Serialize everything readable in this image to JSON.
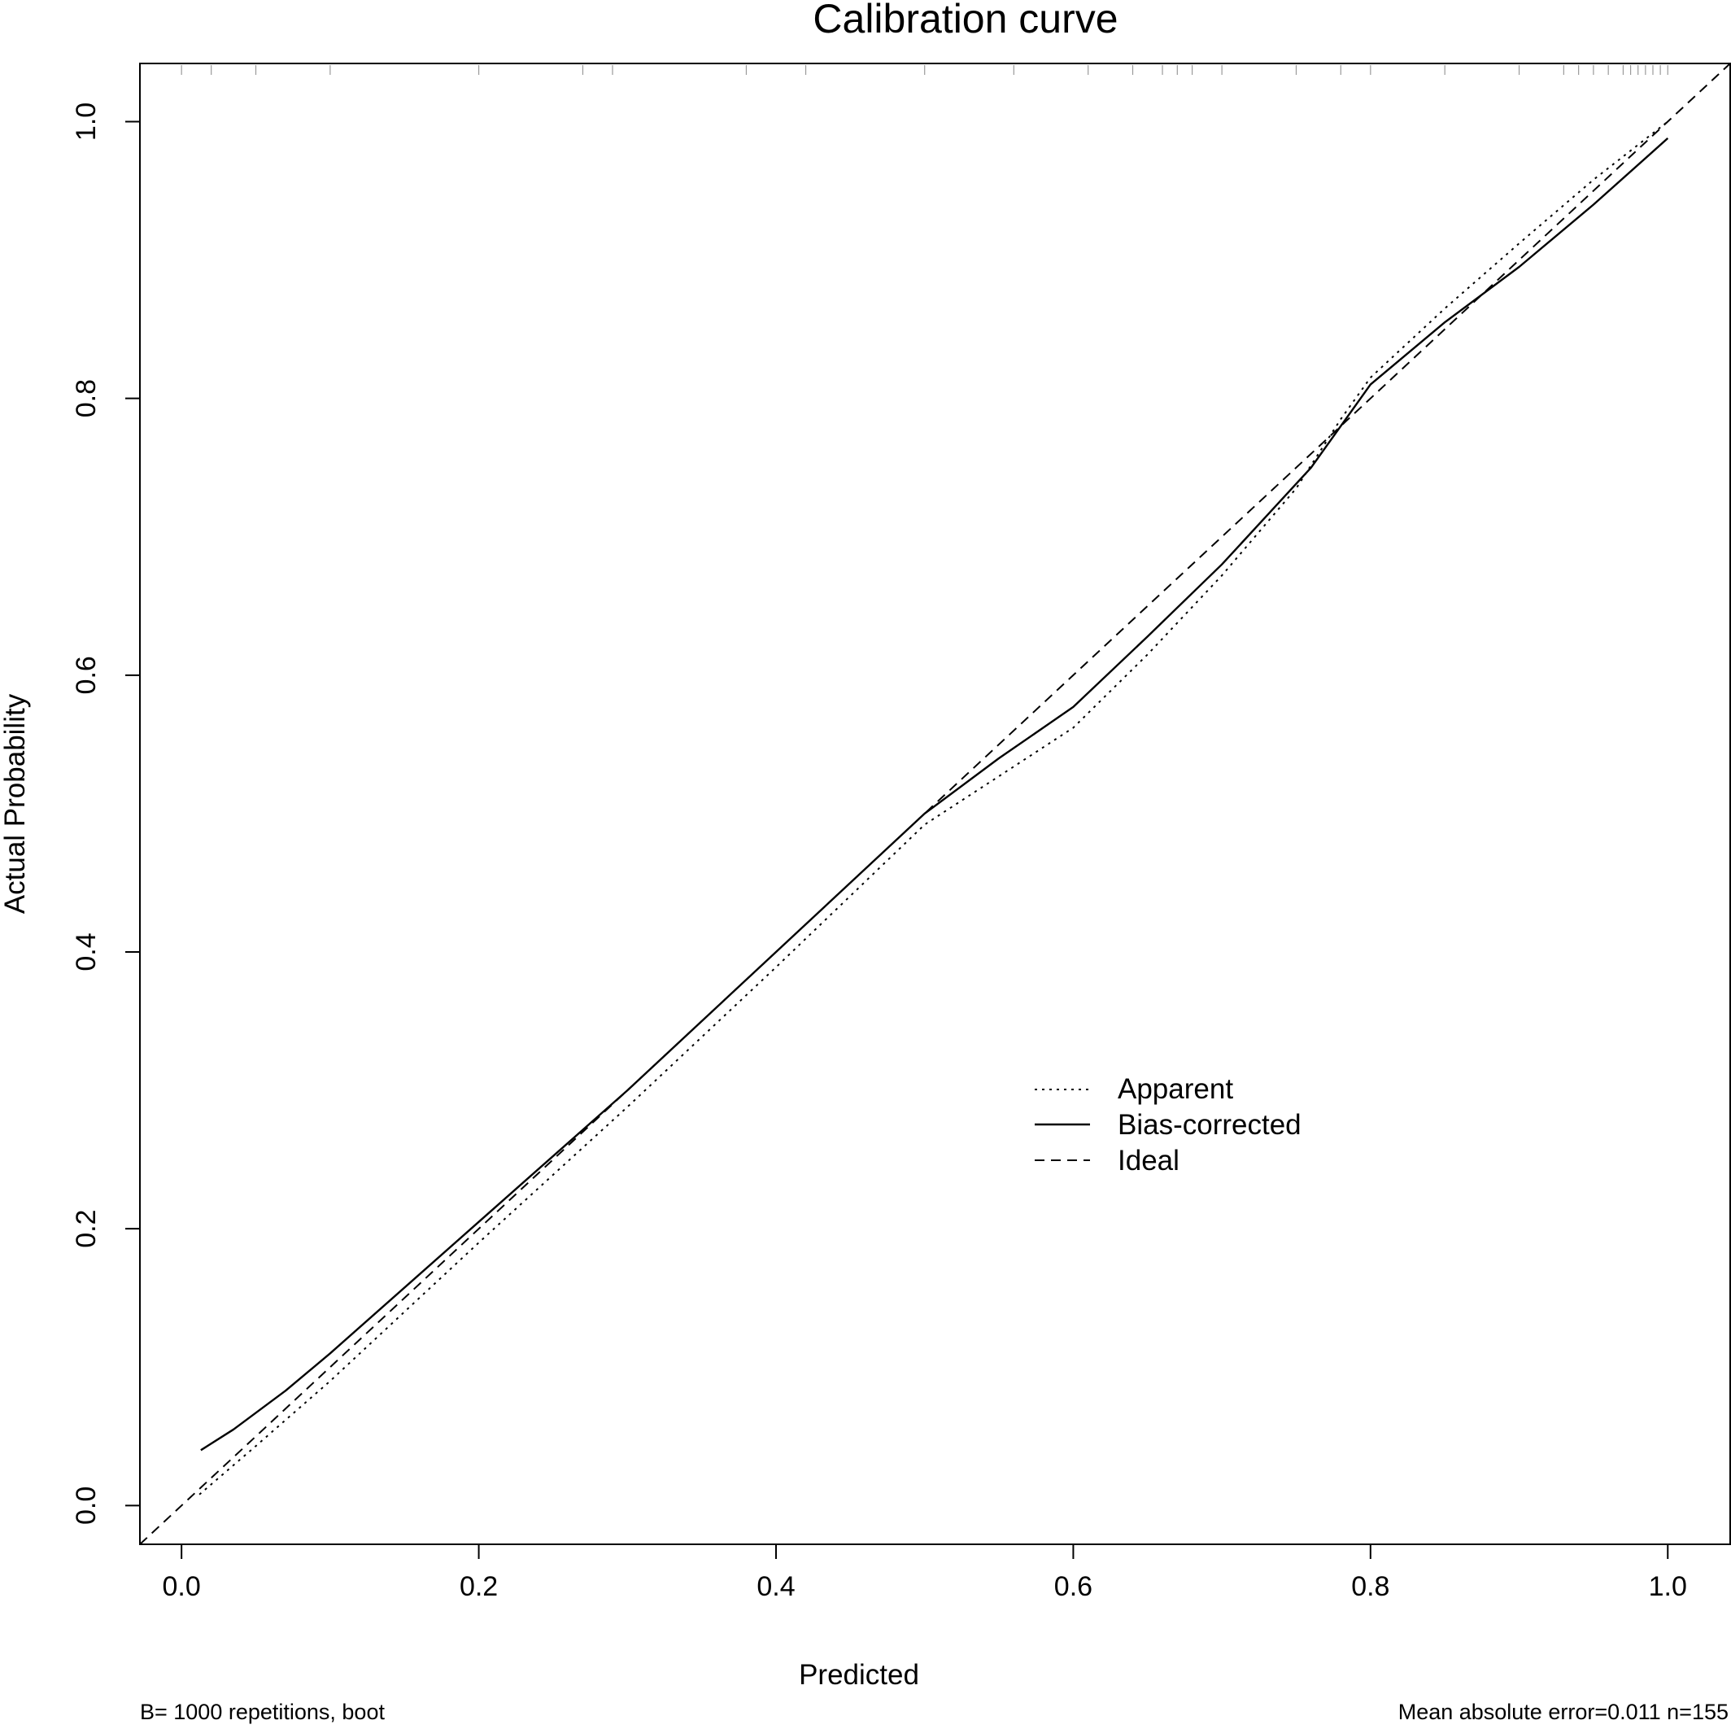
{
  "chart_data": {
    "type": "line",
    "title": "Calibration curve",
    "xlabel": "Predicted",
    "ylabel": "Actual Probability",
    "xlim": [
      -0.028,
      1.042
    ],
    "ylim": [
      -0.028,
      1.042
    ],
    "x_ticks": [
      0.0,
      0.2,
      0.4,
      0.6,
      0.8,
      1.0
    ],
    "x_tick_labels": [
      "0.0",
      "0.2",
      "0.4",
      "0.6",
      "0.8",
      "1.0"
    ],
    "y_ticks": [
      0.0,
      0.2,
      0.4,
      0.6,
      0.8,
      1.0
    ],
    "y_tick_labels": [
      "0.0",
      "0.2",
      "0.4",
      "0.6",
      "0.8",
      "1.0"
    ],
    "grid": false,
    "legend_position": "center-right",
    "series": [
      {
        "name": "Apparent",
        "style": "dotted",
        "color": "#000000",
        "points": [
          [
            0.012,
            0.008
          ],
          [
            0.05,
            0.043
          ],
          [
            0.1,
            0.09
          ],
          [
            0.2,
            0.19
          ],
          [
            0.3,
            0.288
          ],
          [
            0.4,
            0.389
          ],
          [
            0.5,
            0.492
          ],
          [
            0.55,
            0.527
          ],
          [
            0.6,
            0.562
          ],
          [
            0.65,
            0.615
          ],
          [
            0.7,
            0.672
          ],
          [
            0.75,
            0.735
          ],
          [
            0.78,
            0.785
          ],
          [
            0.8,
            0.815
          ],
          [
            0.85,
            0.865
          ],
          [
            0.9,
            0.912
          ],
          [
            0.95,
            0.958
          ],
          [
            1.0,
            1.0
          ]
        ]
      },
      {
        "name": "Bias-corrected",
        "style": "solid",
        "color": "#000000",
        "points": [
          [
            0.013,
            0.04
          ],
          [
            0.035,
            0.055
          ],
          [
            0.07,
            0.083
          ],
          [
            0.1,
            0.11
          ],
          [
            0.2,
            0.205
          ],
          [
            0.3,
            0.3
          ],
          [
            0.4,
            0.4
          ],
          [
            0.5,
            0.5
          ],
          [
            0.55,
            0.54
          ],
          [
            0.6,
            0.577
          ],
          [
            0.65,
            0.628
          ],
          [
            0.7,
            0.68
          ],
          [
            0.76,
            0.75
          ],
          [
            0.8,
            0.81
          ],
          [
            0.85,
            0.855
          ],
          [
            0.9,
            0.895
          ],
          [
            0.95,
            0.94
          ],
          [
            1.0,
            0.988
          ]
        ]
      },
      {
        "name": "Ideal",
        "style": "dashed",
        "color": "#000000",
        "points": [
          [
            -0.028,
            -0.028
          ],
          [
            1.042,
            1.042
          ]
        ]
      }
    ],
    "rug": {
      "color": "#9a9a9a",
      "values": [
        0.0,
        0.02,
        0.05,
        0.1,
        0.2,
        0.27,
        0.29,
        0.38,
        0.42,
        0.5,
        0.56,
        0.61,
        0.64,
        0.66,
        0.67,
        0.68,
        0.7,
        0.75,
        0.78,
        0.8,
        0.85,
        0.9,
        0.93,
        0.94,
        0.95,
        0.96,
        0.97,
        0.975,
        0.98,
        0.985,
        0.99,
        0.995,
        1.0
      ]
    },
    "annotations": {
      "bottom_left": "B= 1000 repetitions, boot",
      "bottom_right": "Mean absolute error=0.011 n=155"
    }
  }
}
